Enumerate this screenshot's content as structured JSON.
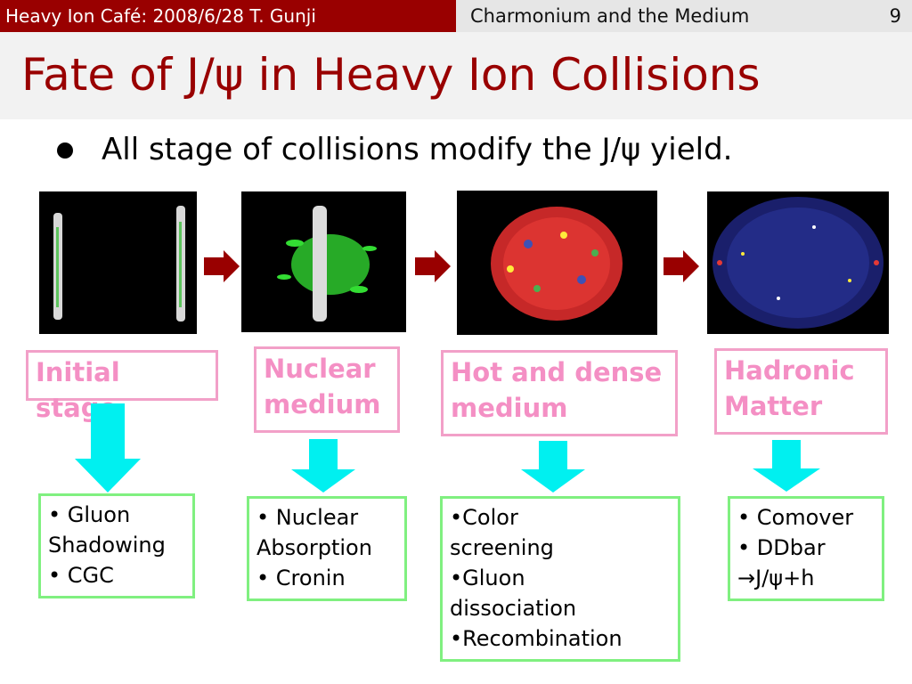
{
  "header": {
    "left": "Heavy Ion Café: 2008/6/28 T. Gunji",
    "topic": "Charmonium and the Medium",
    "page": "9"
  },
  "title": "Fate of J/ψ in Heavy Ion Collisions",
  "bullet": "All stage of collisions modify the J/ψ yield.",
  "colors": {
    "header_bar": "#990000",
    "title_text": "#990000",
    "stage_border": "#f2a0c8",
    "stage_text": "#f48fc4",
    "effect_border": "#80f080",
    "arrow_right": "#990000",
    "arrow_down": "#00f0f0"
  },
  "stages": [
    {
      "label": "Initial stage",
      "effects": "• Gluon\nShadowing\n• CGC"
    },
    {
      "label": "Nuclear\nmedium",
      "effects": "• Nuclear\nAbsorption\n• Cronin"
    },
    {
      "label": "Hot and dense\nmedium",
      "effects": "•Color\nscreening\n•Gluon\ndissociation\n•Recombination"
    },
    {
      "label": "Hadronic\nMatter",
      "effects": "• Comover\n• DDbar\n→J/ψ+h"
    }
  ]
}
